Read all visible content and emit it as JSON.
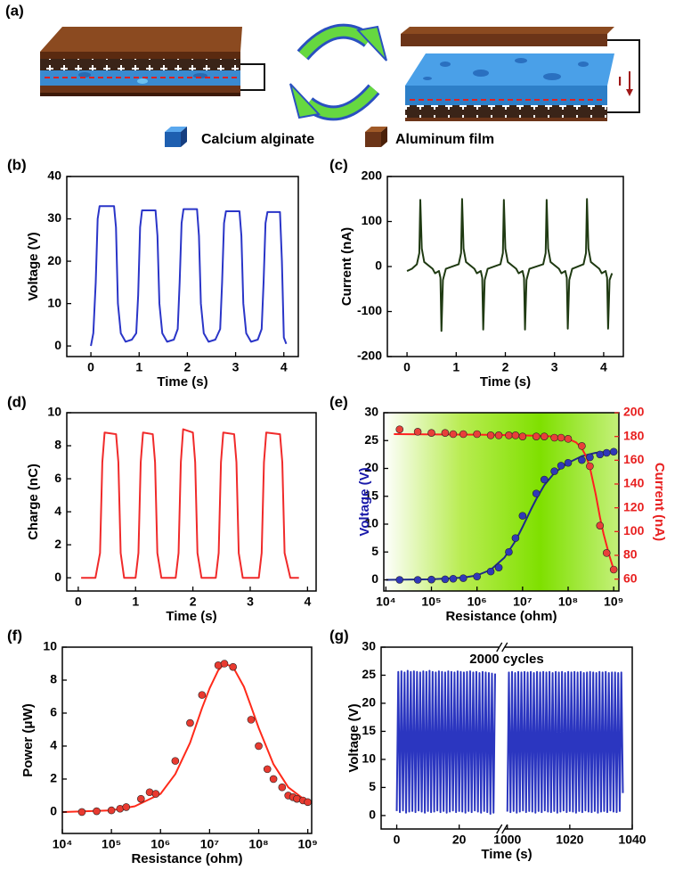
{
  "diagram": {
    "label": "(a)",
    "legend": [
      "Calcium alginate",
      "Aluminum film"
    ],
    "current_symbol": "I"
  },
  "chart_data": [
    {
      "type": "line",
      "label": "(b)",
      "xlabel": "Time (s)",
      "ylabel": "Voltage (V)",
      "xlim": [
        -0.5,
        4.3
      ],
      "ylim": [
        -2.5,
        40
      ],
      "xticks": [
        0,
        1,
        2,
        3,
        4
      ],
      "yticks": [
        0,
        10,
        20,
        30,
        40
      ],
      "series": [
        {
          "color": "#2a35c8",
          "x": [
            0,
            0.05,
            0.1,
            0.14,
            0.18,
            0.48,
            0.52,
            0.56,
            0.62,
            0.72,
            0.85,
            0.94,
            0.98,
            1.02,
            1.06,
            1.34,
            1.38,
            1.42,
            1.48,
            1.58,
            1.72,
            1.8,
            1.84,
            1.88,
            1.92,
            2.2,
            2.24,
            2.28,
            2.34,
            2.44,
            2.58,
            2.68,
            2.72,
            2.76,
            2.8,
            3.08,
            3.12,
            3.16,
            3.22,
            3.32,
            3.46,
            3.54,
            3.58,
            3.62,
            3.66,
            3.92,
            3.96,
            4.0,
            4.05
          ],
          "values": [
            0,
            3,
            15,
            30,
            33,
            33,
            28,
            10,
            3,
            1,
            1.5,
            3,
            12,
            28,
            32,
            32,
            26,
            10,
            3,
            1,
            1.5,
            4,
            15,
            29,
            32.3,
            32.3,
            26,
            10,
            3,
            1,
            1.5,
            4,
            15,
            29,
            31.8,
            31.8,
            26,
            10,
            3,
            1,
            1.5,
            4,
            15,
            29,
            31.6,
            31.6,
            20,
            2,
            0.5
          ]
        }
      ]
    },
    {
      "type": "line",
      "label": "(c)",
      "xlabel": "Time (s)",
      "ylabel": "Current (nA)",
      "xlim": [
        -0.4,
        4.4
      ],
      "ylim": [
        -200,
        200
      ],
      "xticks": [
        0,
        1,
        2,
        3,
        4
      ],
      "yticks": [
        -200,
        -100,
        0,
        100,
        200
      ],
      "series": [
        {
          "color": "#1f3a12",
          "x": [
            0,
            0.1,
            0.2,
            0.25,
            0.27,
            0.3,
            0.35,
            0.52,
            0.57,
            0.65,
            0.68,
            0.7,
            0.73,
            0.79,
            1.05,
            1.1,
            1.12,
            1.15,
            1.2,
            1.37,
            1.42,
            1.5,
            1.53,
            1.55,
            1.58,
            1.64,
            1.9,
            1.95,
            1.97,
            2.0,
            2.05,
            2.22,
            2.27,
            2.35,
            2.38,
            2.4,
            2.43,
            2.49,
            2.77,
            2.82,
            2.84,
            2.87,
            2.92,
            3.09,
            3.14,
            3.22,
            3.25,
            3.27,
            3.3,
            3.36,
            3.59,
            3.64,
            3.66,
            3.69,
            3.74,
            3.91,
            3.96,
            4.04,
            4.07,
            4.09,
            4.12,
            4.17
          ],
          "values": [
            -10,
            -5,
            5,
            30,
            148,
            40,
            10,
            -5,
            -15,
            -10,
            -25,
            -143,
            -30,
            -5,
            5,
            30,
            150,
            40,
            10,
            -5,
            -15,
            -10,
            -25,
            -140,
            -30,
            -5,
            5,
            30,
            148,
            40,
            10,
            -5,
            -15,
            -10,
            -25,
            -140,
            -30,
            -5,
            5,
            30,
            148,
            40,
            10,
            -5,
            -15,
            -10,
            -25,
            -138,
            -30,
            -5,
            5,
            30,
            150,
            40,
            10,
            -5,
            -15,
            -10,
            -25,
            -138,
            -30,
            -15
          ]
        }
      ]
    },
    {
      "type": "line",
      "label": "(d)",
      "xlabel": "Time (s)",
      "ylabel": "Charge (nC)",
      "xlim": [
        -0.2,
        4.15
      ],
      "ylim": [
        -0.8,
        10
      ],
      "xticks": [
        0,
        1,
        2,
        3,
        4
      ],
      "yticks": [
        0,
        2,
        4,
        6,
        8,
        10
      ],
      "series": [
        {
          "color": "#f02a2a",
          "x": [
            0.05,
            0.3,
            0.38,
            0.42,
            0.46,
            0.66,
            0.7,
            0.74,
            0.8,
            1.0,
            1.05,
            1.09,
            1.13,
            1.3,
            1.34,
            1.38,
            1.45,
            1.7,
            1.75,
            1.79,
            1.83,
            2.0,
            2.04,
            2.08,
            2.15,
            2.4,
            2.45,
            2.49,
            2.53,
            2.72,
            2.76,
            2.8,
            2.87,
            3.15,
            3.2,
            3.24,
            3.28,
            3.52,
            3.56,
            3.6,
            3.7,
            3.85
          ],
          "values": [
            0,
            0,
            1.5,
            7,
            8.8,
            8.7,
            7,
            1.5,
            0,
            0,
            1.5,
            7,
            8.8,
            8.7,
            7,
            1.5,
            0,
            0,
            1.5,
            7,
            9,
            8.8,
            7,
            1.5,
            0,
            0,
            1.5,
            7,
            8.8,
            8.7,
            7,
            1.5,
            0,
            0,
            1.5,
            7,
            8.8,
            8.7,
            7,
            1.5,
            0,
            0
          ]
        }
      ]
    },
    {
      "type": "scatter",
      "label": "(e)",
      "xlabel": "Resistance (ohm)",
      "ylabel": "Voltage (V)",
      "y2label": "Current (nA)",
      "ylabel_color": "#1a1aaa",
      "y2color": "#e82020",
      "xscale": "log",
      "background_colors": [
        "#ffffff",
        "#b8ec50",
        "#7fe000",
        "#c4f07a"
      ],
      "xlim": [
        9000,
        1300000000
      ],
      "ylim": [
        -2,
        30
      ],
      "y2lim": [
        50,
        200
      ],
      "xticks": [
        {
          "value": 10000,
          "label": "10⁴"
        },
        {
          "value": 100000,
          "label": "10⁵"
        },
        {
          "value": 1000000,
          "label": "10⁶"
        },
        {
          "value": 10000000,
          "label": "10⁷"
        },
        {
          "value": 100000000,
          "label": "10⁸"
        },
        {
          "value": 1000000000,
          "label": "10⁹"
        }
      ],
      "yticks": [
        0,
        5,
        10,
        15,
        20,
        25,
        30
      ],
      "y2ticks": [
        60,
        80,
        100,
        120,
        140,
        160,
        180,
        200
      ],
      "series": [
        {
          "kind": "line",
          "color": "#1e2a8a",
          "x": [
            10000,
            100000,
            500000,
            1000000,
            2000000,
            4000000,
            7000000,
            10000000,
            15000000,
            20000000,
            30000000,
            50000000,
            100000000,
            200000000,
            400000000,
            1000000000
          ],
          "values": [
            0,
            0.1,
            0.4,
            0.8,
            1.8,
            4,
            7,
            9.5,
            12.5,
            14.5,
            17,
            19.2,
            21,
            22.2,
            22.8,
            23.1
          ]
        },
        {
          "kind": "line",
          "axis": "y2",
          "color": "#ff2020",
          "x": [
            15000,
            1000000,
            10000000,
            50000000,
            100000000,
            150000000,
            200000000,
            250000000,
            300000000,
            400000000,
            500000000,
            600000000,
            800000000,
            1000000000
          ],
          "values": [
            182,
            181.5,
            181,
            180,
            178,
            175,
            170,
            163,
            154,
            132,
            112,
            98,
            80,
            68
          ]
        },
        {
          "kind": "scatter",
          "color": "#3038b8",
          "x": [
            20000,
            50000,
            100000,
            200000,
            300000,
            500000,
            1000000,
            2000000,
            3000000,
            5000000,
            7000000,
            10000000,
            20000000,
            30000000,
            50000000,
            70000000,
            100000000,
            200000000,
            300000000,
            500000000,
            700000000,
            1000000000
          ],
          "values": [
            0,
            0,
            0.05,
            0.1,
            0.2,
            0.3,
            0.6,
            1.5,
            2.2,
            5,
            7.5,
            11.5,
            15.5,
            18,
            19.5,
            20.5,
            21,
            21.5,
            22,
            22.5,
            22.8,
            23
          ]
        },
        {
          "kind": "scatter",
          "axis": "y2",
          "color": "#e8403a",
          "x": [
            20000,
            50000,
            100000,
            200000,
            300000,
            500000,
            1000000,
            2000000,
            3000000,
            5000000,
            7000000,
            10000000,
            20000000,
            30000000,
            50000000,
            70000000,
            100000000,
            200000000,
            300000000,
            500000000,
            700000000,
            1000000000
          ],
          "values": [
            186,
            184,
            183,
            183,
            182,
            182,
            182,
            181,
            181,
            181,
            181,
            180,
            180,
            180,
            179,
            179,
            178,
            172,
            155,
            105,
            82,
            68
          ]
        }
      ]
    },
    {
      "type": "scatter",
      "label": "(f)",
      "xlabel": "Resistance (ohm)",
      "ylabel": "Power (μW)",
      "xscale": "log",
      "xlim": [
        10000,
        1200000000
      ],
      "ylim": [
        -1.3,
        10
      ],
      "xticks": [
        {
          "value": 10000,
          "label": "10⁴"
        },
        {
          "value": 100000,
          "label": "10⁵"
        },
        {
          "value": 1000000,
          "label": "10⁶"
        },
        {
          "value": 10000000,
          "label": "10⁷"
        },
        {
          "value": 100000000,
          "label": "10⁸"
        },
        {
          "value": 1000000000,
          "label": "10⁹"
        }
      ],
      "yticks": [
        0,
        2,
        4,
        6,
        8,
        10
      ],
      "series": [
        {
          "kind": "line",
          "color": "#ff2a1a",
          "x": [
            10000,
            100000,
            300000,
            1000000,
            2000000,
            4000000,
            7000000,
            10000000,
            15000000,
            20000000,
            30000000,
            50000000,
            70000000,
            100000000,
            200000000,
            400000000,
            1000000000
          ],
          "values": [
            0,
            0.1,
            0.35,
            1.1,
            2.3,
            4.2,
            6.3,
            7.5,
            8.6,
            9,
            8.8,
            7.6,
            6.4,
            5.1,
            2.9,
            1.5,
            0.6
          ]
        },
        {
          "kind": "scatter",
          "color": "#e83a30",
          "x": [
            25000,
            50000,
            100000,
            150000,
            200000,
            400000,
            600000,
            800000,
            2000000,
            4000000,
            7000000,
            15000000,
            20000000,
            30000000,
            70000000,
            100000000,
            150000000,
            200000000,
            300000000,
            400000000,
            500000000,
            600000000,
            800000000,
            1000000000
          ],
          "values": [
            0,
            0.05,
            0.1,
            0.2,
            0.3,
            0.8,
            1.2,
            1.1,
            3.1,
            5.4,
            7.1,
            8.9,
            9,
            8.8,
            5.6,
            4,
            2.6,
            2,
            1.5,
            1,
            0.9,
            0.8,
            0.7,
            0.6
          ]
        }
      ]
    },
    {
      "type": "line",
      "label": "(g)",
      "xlabel": "Time (s)",
      "ylabel": "Voltage (V)",
      "annotation": "2000 cycles",
      "xlim": [
        -5,
        1040
      ],
      "xbreak": [
        33,
        999
      ],
      "ylim": [
        -2.4,
        30
      ],
      "xticks": [
        0,
        20,
        1000,
        1020,
        1040
      ],
      "yticks": [
        0,
        5,
        10,
        15,
        20,
        25,
        30
      ],
      "series": [
        {
          "color": "#2b36c0",
          "x": [
            0,
            0.5,
            1,
            1.5,
            2,
            2.5,
            3,
            3.5,
            4,
            4.5,
            5,
            5.5,
            6,
            6.5,
            7,
            7.5,
            8,
            8.5,
            9,
            9.5,
            10,
            10.5,
            11,
            11.5,
            12,
            12.5,
            13,
            13.5,
            14,
            14.5,
            15,
            15.5,
            16,
            16.5,
            17,
            17.5,
            18,
            18.5,
            19,
            19.5,
            20,
            20.5,
            21,
            21.5,
            22,
            22.5,
            23,
            23.5,
            24,
            24.5,
            25,
            25.5,
            26,
            26.5,
            27,
            27.5,
            28,
            28.5,
            29,
            29.5,
            30,
            30.5,
            31,
            31.5,
            32,
            1000,
            1000.5,
            1001,
            1001.5,
            1002,
            1002.5,
            1003,
            1003.5,
            1004,
            1004.5,
            1005,
            1005.5,
            1006,
            1006.5,
            1007,
            1007.5,
            1008,
            1008.5,
            1009,
            1009.5,
            1010,
            1010.5,
            1011,
            1011.5,
            1012,
            1012.5,
            1013,
            1013.5,
            1014,
            1014.5,
            1015,
            1015.5,
            1016,
            1016.5,
            1017,
            1017.5,
            1018,
            1018.5,
            1019,
            1019.5,
            1020,
            1020.5,
            1021,
            1021.5,
            1022,
            1022.5,
            1023,
            1023.5,
            1024,
            1024.5,
            1025,
            1025.5,
            1026,
            1026.5,
            1027,
            1027.5,
            1028,
            1028.5,
            1029,
            1029.5,
            1030,
            1030.5,
            1031,
            1031.5,
            1032,
            1032.5,
            1033,
            1033.5,
            1034,
            1034.5,
            1035,
            1035.5,
            1036,
            1036.5,
            1037
          ],
          "values": [
            0.8,
            25.6,
            0.6,
            25.7,
            0.9,
            25.5,
            0.5,
            25.8,
            0.7,
            25.6,
            0.8,
            25.7,
            0.6,
            25.6,
            0.9,
            25.5,
            0.7,
            25.7,
            0.5,
            25.6,
            0.8,
            25.8,
            0.6,
            25.6,
            0.7,
            25.5,
            0.9,
            25.7,
            0.6,
            25.6,
            0.8,
            25.5,
            0.5,
            25.7,
            0.7,
            25.6,
            0.9,
            25.5,
            0.6,
            25.7,
            0.8,
            25.6,
            0.7,
            25.5,
            0.5,
            25.6,
            0.8,
            25.7,
            0.6,
            25.5,
            0.9,
            25.6,
            0.7,
            25.4,
            0.5,
            25.6,
            0.8,
            25.5,
            0.6,
            25.4,
            0.3,
            25.3,
            0.5,
            25.3,
            null,
            0.7,
            25.5,
            0.6,
            25.6,
            0.8,
            25.4,
            0.5,
            25.6,
            0.7,
            25.5,
            0.9,
            25.6,
            0.6,
            25.5,
            0.8,
            25.6,
            0.7,
            25.4,
            0.5,
            25.6,
            0.8,
            25.5,
            0.6,
            25.6,
            0.9,
            25.5,
            0.7,
            25.6,
            0.6,
            25.4,
            0.8,
            25.6,
            0.5,
            25.5,
            0.7,
            25.6,
            0.9,
            25.4,
            0.6,
            25.6,
            0.8,
            25.5,
            0.7,
            25.6,
            0.5,
            25.5,
            0.8,
            25.6,
            0.6,
            25.4,
            0.9,
            25.5,
            0.7,
            25.6,
            0.6,
            25.5,
            0.8,
            25.4,
            0.5,
            25.6,
            0.7,
            25.5,
            0.8,
            25.6,
            0.6,
            25.4,
            0.9,
            25.5,
            0.7,
            25.5,
            0.6,
            25.4,
            0.8,
            25.5,
            4
          ]
        }
      ]
    }
  ]
}
